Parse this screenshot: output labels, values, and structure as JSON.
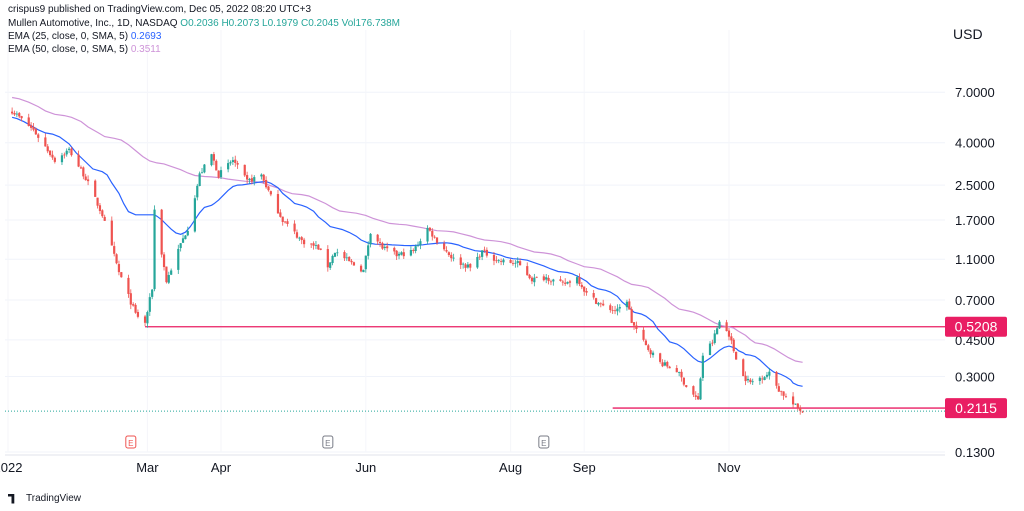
{
  "publisher_line": "crispus9 published on TradingView.com, Dec 05, 2022 08:20 UTC+3",
  "currency": "USD",
  "legend": {
    "symbol": "Mullen Automotive, Inc., 1D, NASDAQ",
    "open": "O0.2036",
    "high": "H0.2073",
    "low": "L0.1979",
    "close": "C0.2045",
    "volume": "Vol176.738M",
    "ema25_label": "EMA (25, close, 0, SMA, 5)",
    "ema25_value": "0.2693",
    "ema50_label": "EMA (50, close, 0, SMA, 5)",
    "ema50_value": "0.3511"
  },
  "footer": {
    "brand": "TradingView"
  },
  "colors": {
    "up": "#26a69a",
    "down": "#ef5350",
    "ema25": "#2962ff",
    "ema50": "#ce93d8",
    "hline": "#e91e63",
    "price_tag": "#e91e63"
  },
  "chart_data": {
    "type": "line",
    "yscale": "log",
    "ylim": [
      0.13,
      10
    ],
    "y_ticks": [
      "7.0000",
      "4.0000",
      "2.5000",
      "1.7000",
      "1.1000",
      "0.7000",
      "0.4500",
      "0.3000",
      "0.1300"
    ],
    "y_tick_values": [
      7.0,
      4.0,
      2.5,
      1.7,
      1.1,
      0.7,
      0.45,
      0.3,
      0.13
    ],
    "x_ticks": [
      "2022",
      "Mar",
      "Apr",
      "Jun",
      "Aug",
      "Sep",
      "Nov"
    ],
    "x_tick_dates": [
      "2022-01-01",
      "2022-03-01",
      "2022-04-01",
      "2022-06-01",
      "2022-08-01",
      "2022-09-01",
      "2022-11-01"
    ],
    "x_range": [
      "2021-12-31",
      "2023-01-31"
    ],
    "earnings_markers": [
      {
        "date": "2022-02-22",
        "label": "E",
        "color": "#ef5350"
      },
      {
        "date": "2022-05-16",
        "label": "E",
        "color": "#787b86"
      },
      {
        "date": "2022-08-15",
        "label": "E",
        "color": "#787b86"
      }
    ],
    "horizontal_levels": [
      {
        "label": "0.5208",
        "value": 0.5208,
        "from": "2022-02-28"
      },
      {
        "label": "0.2115",
        "value": 0.2115,
        "from": "2022-09-13"
      }
    ],
    "last_close": 0.2045,
    "price_anchors": [
      [
        "2022-01-03",
        5.7
      ],
      [
        "2022-01-12",
        4.6
      ],
      [
        "2022-01-21",
        3.3
      ],
      [
        "2022-01-27",
        3.7
      ],
      [
        "2022-02-03",
        2.7
      ],
      [
        "2022-02-10",
        1.8
      ],
      [
        "2022-02-17",
        0.95
      ],
      [
        "2022-02-24",
        0.6
      ],
      [
        "2022-02-28",
        0.54
      ],
      [
        "2022-03-03",
        0.8
      ],
      [
        "2022-03-04",
        1.9
      ],
      [
        "2022-03-09",
        0.86
      ],
      [
        "2022-03-15",
        1.3
      ],
      [
        "2022-03-18",
        1.55
      ],
      [
        "2022-03-23",
        2.8
      ],
      [
        "2022-03-28",
        3.5
      ],
      [
        "2022-03-31",
        2.8
      ],
      [
        "2022-04-06",
        3.3
      ],
      [
        "2022-04-12",
        2.6
      ],
      [
        "2022-04-18",
        2.8
      ],
      [
        "2022-04-22",
        2.2
      ],
      [
        "2022-04-27",
        1.7
      ],
      [
        "2022-05-05",
        1.35
      ],
      [
        "2022-05-12",
        1.25
      ],
      [
        "2022-05-16",
        1.02
      ],
      [
        "2022-05-19",
        1.2
      ],
      [
        "2022-05-26",
        1.05
      ],
      [
        "2022-05-31",
        0.97
      ],
      [
        "2022-06-03",
        1.5
      ],
      [
        "2022-06-08",
        1.25
      ],
      [
        "2022-06-14",
        1.15
      ],
      [
        "2022-06-21",
        1.2
      ],
      [
        "2022-06-27",
        1.55
      ],
      [
        "2022-07-01",
        1.35
      ],
      [
        "2022-07-08",
        1.1
      ],
      [
        "2022-07-15",
        1.0
      ],
      [
        "2022-07-20",
        1.2
      ],
      [
        "2022-07-27",
        1.08
      ],
      [
        "2022-08-04",
        1.05
      ],
      [
        "2022-08-10",
        0.88
      ],
      [
        "2022-08-16",
        0.9
      ],
      [
        "2022-08-23",
        0.83
      ],
      [
        "2022-08-29",
        0.9
      ],
      [
        "2022-09-02",
        0.75
      ],
      [
        "2022-09-09",
        0.65
      ],
      [
        "2022-09-15",
        0.62
      ],
      [
        "2022-09-19",
        0.7
      ],
      [
        "2022-09-21",
        0.55
      ],
      [
        "2022-09-27",
        0.42
      ],
      [
        "2022-10-03",
        0.35
      ],
      [
        "2022-10-10",
        0.32
      ],
      [
        "2022-10-14",
        0.27
      ],
      [
        "2022-10-19",
        0.23
      ],
      [
        "2022-10-21",
        0.38
      ],
      [
        "2022-10-25",
        0.44
      ],
      [
        "2022-10-28",
        0.55
      ],
      [
        "2022-11-01",
        0.48
      ],
      [
        "2022-11-03",
        0.4
      ],
      [
        "2022-11-07",
        0.3
      ],
      [
        "2022-11-10",
        0.28
      ],
      [
        "2022-11-15",
        0.3
      ],
      [
        "2022-11-18",
        0.31
      ],
      [
        "2022-11-22",
        0.26
      ],
      [
        "2022-11-28",
        0.22
      ],
      [
        "2022-12-02",
        0.2045
      ]
    ],
    "ema25": [
      [
        "2022-01-03",
        5.3
      ],
      [
        "2022-01-20",
        4.4
      ],
      [
        "2022-02-10",
        2.9
      ],
      [
        "2022-02-24",
        1.8
      ],
      [
        "2022-03-04",
        1.8
      ],
      [
        "2022-03-15",
        1.45
      ],
      [
        "2022-03-28",
        2.0
      ],
      [
        "2022-04-08",
        2.5
      ],
      [
        "2022-04-20",
        2.6
      ],
      [
        "2022-05-05",
        2.0
      ],
      [
        "2022-05-20",
        1.55
      ],
      [
        "2022-06-05",
        1.3
      ],
      [
        "2022-06-20",
        1.28
      ],
      [
        "2022-07-05",
        1.32
      ],
      [
        "2022-07-20",
        1.2
      ],
      [
        "2022-08-05",
        1.1
      ],
      [
        "2022-08-25",
        0.95
      ],
      [
        "2022-09-10",
        0.78
      ],
      [
        "2022-09-25",
        0.6
      ],
      [
        "2022-10-10",
        0.43
      ],
      [
        "2022-10-21",
        0.35
      ],
      [
        "2022-11-01",
        0.42
      ],
      [
        "2022-11-10",
        0.38
      ],
      [
        "2022-11-22",
        0.31
      ],
      [
        "2022-12-02",
        0.2693
      ]
    ],
    "ema50": [
      [
        "2022-01-03",
        6.6
      ],
      [
        "2022-01-25",
        5.4
      ],
      [
        "2022-02-15",
        4.2
      ],
      [
        "2022-03-05",
        3.2
      ],
      [
        "2022-03-25",
        2.75
      ],
      [
        "2022-04-15",
        2.6
      ],
      [
        "2022-05-05",
        2.25
      ],
      [
        "2022-05-25",
        1.85
      ],
      [
        "2022-06-15",
        1.62
      ],
      [
        "2022-07-05",
        1.5
      ],
      [
        "2022-07-25",
        1.35
      ],
      [
        "2022-08-15",
        1.18
      ],
      [
        "2022-09-05",
        1.0
      ],
      [
        "2022-09-25",
        0.82
      ],
      [
        "2022-10-15",
        0.62
      ],
      [
        "2022-11-01",
        0.52
      ],
      [
        "2022-11-15",
        0.43
      ],
      [
        "2022-12-02",
        0.3511
      ]
    ]
  }
}
